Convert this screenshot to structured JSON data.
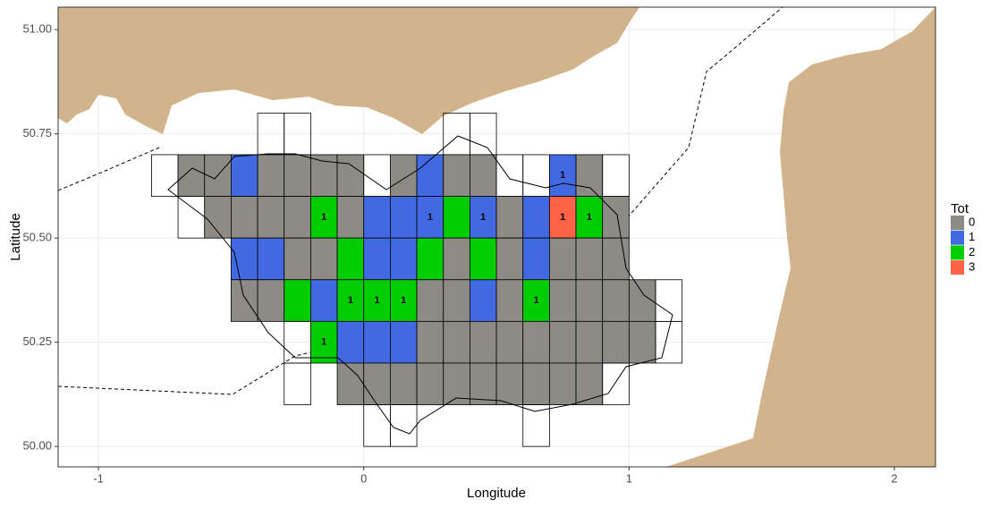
{
  "chart_data": {
    "type": "grid-map",
    "x_label": "Longitude",
    "y_label": "Latitude",
    "xlim": [
      -1.152,
      2.155
    ],
    "ylim": [
      49.951,
      51.054
    ],
    "xticks": [
      -1,
      0,
      1,
      2
    ],
    "yticks": [
      {
        "value": 50,
        "label": "50.00"
      },
      {
        "value": 50.25,
        "label": "50.25"
      },
      {
        "value": 50.5,
        "label": "50.50"
      },
      {
        "value": 50.75,
        "label": "50.75"
      },
      {
        "value": 51,
        "label": "51.00"
      }
    ],
    "grid": true,
    "legend": {
      "title": "Tot",
      "labels": [
        "0",
        "1",
        "2",
        "3"
      ],
      "colors": [
        "#8c8b85",
        "#4169e1",
        "#00cd00",
        "#ff6347"
      ]
    },
    "cells": {
      "lon": [
        -0.4,
        -0.3,
        0.3,
        0.4,
        -0.8,
        -0.7,
        -0.6,
        -0.5,
        -0.4,
        -0.3,
        -0.2,
        -0.1,
        0.0,
        0.1,
        0.2,
        0.3,
        0.4,
        0.5,
        0.6,
        0.7,
        0.8,
        0.9,
        -0.7,
        -0.6,
        -0.5,
        -0.4,
        -0.3,
        -0.2,
        -0.1,
        0.0,
        0.1,
        0.2,
        0.3,
        0.4,
        0.5,
        0.6,
        0.7,
        0.8,
        0.9,
        -0.5,
        -0.4,
        -0.3,
        -0.2,
        -0.1,
        0.0,
        0.1,
        0.2,
        0.3,
        0.4,
        0.5,
        0.6,
        0.7,
        0.8,
        0.9,
        -0.5,
        -0.4,
        -0.3,
        -0.2,
        -0.1,
        0.0,
        0.1,
        0.2,
        0.3,
        0.4,
        0.5,
        0.6,
        0.7,
        0.8,
        0.9,
        1.0,
        1.1,
        -0.3,
        -0.2,
        -0.1,
        0.0,
        0.1,
        0.2,
        0.3,
        0.4,
        0.5,
        0.6,
        0.7,
        0.8,
        0.9,
        1.0,
        1.1,
        -0.3,
        -0.1,
        0.0,
        0.1,
        0.2,
        0.3,
        0.4,
        0.5,
        0.6,
        0.7,
        0.8,
        0.9,
        0.0,
        0.1,
        0.6
      ],
      "lat": [
        50.7,
        50.7,
        50.7,
        50.7,
        50.6,
        50.6,
        50.6,
        50.6,
        50.6,
        50.6,
        50.6,
        50.6,
        50.6,
        50.6,
        50.6,
        50.6,
        50.6,
        50.6,
        50.6,
        50.6,
        50.6,
        50.6,
        50.5,
        50.5,
        50.5,
        50.5,
        50.5,
        50.5,
        50.5,
        50.5,
        50.5,
        50.5,
        50.5,
        50.5,
        50.5,
        50.5,
        50.5,
        50.5,
        50.5,
        50.4,
        50.4,
        50.4,
        50.4,
        50.4,
        50.4,
        50.4,
        50.4,
        50.4,
        50.4,
        50.4,
        50.4,
        50.4,
        50.4,
        50.4,
        50.3,
        50.3,
        50.3,
        50.3,
        50.3,
        50.3,
        50.3,
        50.3,
        50.3,
        50.3,
        50.3,
        50.3,
        50.3,
        50.3,
        50.3,
        50.3,
        50.3,
        50.2,
        50.2,
        50.2,
        50.2,
        50.2,
        50.2,
        50.2,
        50.2,
        50.2,
        50.2,
        50.2,
        50.2,
        50.2,
        50.2,
        50.2,
        50.1,
        50.1,
        50.1,
        50.1,
        50.1,
        50.1,
        50.1,
        50.1,
        50.1,
        50.1,
        50.1,
        50.1,
        50.0,
        50.0,
        50.0
      ],
      "tot": [
        null,
        null,
        null,
        null,
        null,
        0,
        0,
        1,
        0,
        0,
        0,
        0,
        null,
        0,
        1,
        0,
        0,
        null,
        null,
        1,
        0,
        null,
        null,
        0,
        0,
        0,
        0,
        2,
        0,
        1,
        1,
        1,
        2,
        1,
        0,
        1,
        3,
        2,
        0,
        1,
        1,
        0,
        0,
        2,
        1,
        1,
        2,
        0,
        2,
        0,
        1,
        0,
        0,
        0,
        0,
        0,
        2,
        1,
        2,
        2,
        2,
        0,
        0,
        1,
        0,
        2,
        0,
        0,
        0,
        0,
        null,
        null,
        2,
        1,
        1,
        1,
        0,
        0,
        0,
        0,
        0,
        0,
        0,
        0,
        0,
        null,
        null,
        0,
        0,
        0,
        0,
        0,
        0,
        0,
        0,
        0,
        0,
        null,
        null,
        null,
        null
      ],
      "labels": [
        null,
        null,
        null,
        null,
        null,
        null,
        null,
        null,
        null,
        null,
        null,
        null,
        null,
        null,
        null,
        null,
        null,
        null,
        null,
        "1",
        null,
        null,
        null,
        null,
        null,
        null,
        null,
        "1",
        null,
        null,
        null,
        "1",
        null,
        "1",
        null,
        null,
        "1",
        "1",
        null,
        null,
        null,
        null,
        null,
        null,
        null,
        null,
        null,
        null,
        null,
        null,
        null,
        null,
        null,
        null,
        null,
        null,
        null,
        null,
        "1",
        "1",
        "1",
        null,
        null,
        null,
        null,
        "1",
        null,
        null,
        null,
        null,
        null,
        null,
        "1",
        null,
        null,
        null,
        null,
        null,
        null,
        null,
        null,
        null,
        null,
        null,
        null,
        null,
        null,
        null,
        null,
        null,
        null,
        null,
        null,
        null,
        null,
        null,
        null,
        null,
        null,
        null,
        null
      ]
    }
  }
}
